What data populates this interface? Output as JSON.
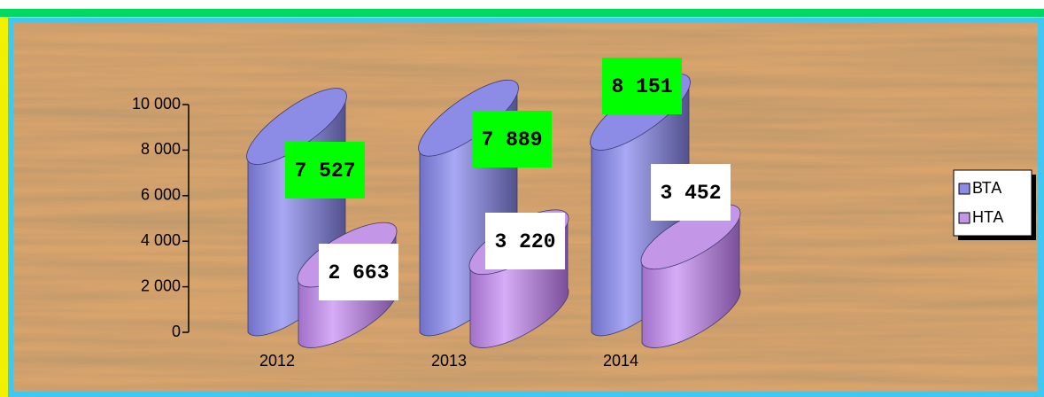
{
  "chart_data": {
    "type": "bar3d",
    "categories": [
      "2012",
      "2013",
      "2014"
    ],
    "series": [
      {
        "name": "ВТА",
        "color": "#8c8ce6",
        "values": [
          7527,
          7889,
          8151
        ],
        "value_labels": [
          "7 527",
          "7 889",
          "8 151"
        ]
      },
      {
        "name": "НТА",
        "color": "#c496e8",
        "values": [
          2663,
          3220,
          3452
        ],
        "value_labels": [
          "2 663",
          "3 220",
          "3 452"
        ]
      }
    ],
    "ylim": [
      0,
      10000
    ],
    "yticks": [
      0,
      {
        "value": 2000,
        "label": "2 000"
      },
      {
        "value": 4000,
        "label": "4 000"
      },
      {
        "value": 6000,
        "label": "6 000"
      },
      {
        "value": 8000,
        "label": "8 000"
      },
      {
        "value": 10000,
        "label": "10 000"
      }
    ],
    "legend": "right"
  }
}
